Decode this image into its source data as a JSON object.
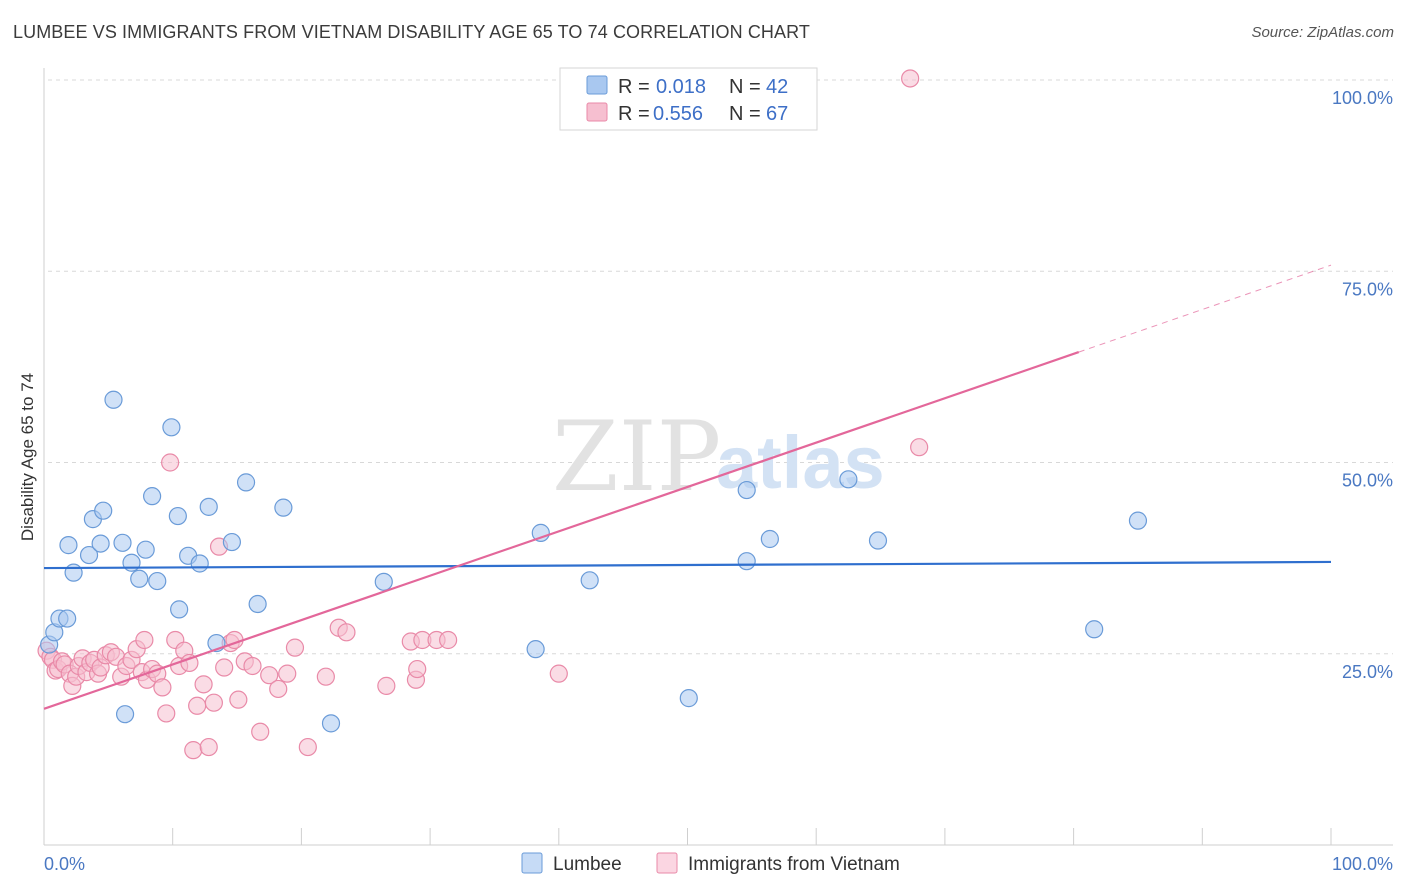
{
  "header": {
    "title": "LUMBEE VS IMMIGRANTS FROM VIETNAM DISABILITY AGE 65 TO 74 CORRELATION CHART",
    "source": "Source: ZipAtlas.com"
  },
  "watermark": {
    "zip": "ZIP",
    "atlas": "atlas"
  },
  "colors": {
    "blue_fill": "#a9c8f0",
    "blue_stroke": "#6a9bd8",
    "blue_line": "#2f6fce",
    "pink_fill": "#f6bfd0",
    "pink_stroke": "#e98aa8",
    "pink_line": "#e3679a",
    "axis_text": "#4a78c2",
    "grid": "#d8d8d8"
  },
  "legend": {
    "r_label": "R =",
    "n_label": "N =",
    "series": [
      {
        "r_value": "0.018",
        "n_value": "42"
      },
      {
        "r_value": "0.556",
        "n_value": "67"
      }
    ]
  },
  "chart_data": {
    "type": "scatter",
    "title": "LUMBEE VS IMMIGRANTS FROM VIETNAM DISABILITY AGE 65 TO 74 CORRELATION CHART",
    "xlabel": "",
    "ylabel": "Disability Age 65 to 74",
    "xlim": [
      0,
      100
    ],
    "ylim": [
      0,
      100
    ],
    "x_tick_labels": [
      "0.0%",
      "100.0%"
    ],
    "y_ticks": [
      {
        "value": 25,
        "label": "25.0%"
      },
      {
        "value": 50,
        "label": "50.0%"
      },
      {
        "value": 75,
        "label": "75.0%"
      },
      {
        "value": 100,
        "label": "100.0%"
      }
    ],
    "series": [
      {
        "name": "Lumbee",
        "color": "#a9c8f0",
        "trend": {
          "x": [
            0,
            100
          ],
          "y": [
            36.2,
            37.0
          ],
          "solid_until": 100
        },
        "points": [
          [
            0.4,
            26.2
          ],
          [
            0.8,
            27.8
          ],
          [
            1.2,
            29.6
          ],
          [
            1.8,
            29.6
          ],
          [
            1.9,
            39.2
          ],
          [
            2.3,
            35.6
          ],
          [
            3.5,
            37.9
          ],
          [
            3.8,
            42.6
          ],
          [
            4.4,
            39.4
          ],
          [
            4.6,
            43.7
          ],
          [
            5.4,
            58.2
          ],
          [
            6.1,
            39.5
          ],
          [
            6.3,
            17.1
          ],
          [
            6.8,
            36.9
          ],
          [
            7.4,
            34.8
          ],
          [
            7.9,
            38.6
          ],
          [
            8.4,
            45.6
          ],
          [
            8.8,
            34.5
          ],
          [
            9.9,
            54.6
          ],
          [
            10.4,
            43.0
          ],
          [
            10.5,
            30.8
          ],
          [
            11.2,
            37.8
          ],
          [
            12.1,
            36.8
          ],
          [
            12.8,
            44.2
          ],
          [
            13.4,
            26.4
          ],
          [
            14.6,
            39.6
          ],
          [
            15.7,
            47.4
          ],
          [
            16.6,
            31.5
          ],
          [
            18.6,
            44.1
          ],
          [
            22.3,
            15.9
          ],
          [
            26.4,
            34.4
          ],
          [
            38.2,
            25.6
          ],
          [
            38.6,
            40.8
          ],
          [
            42.4,
            34.6
          ],
          [
            50.1,
            19.2
          ],
          [
            54.6,
            46.4
          ],
          [
            54.6,
            37.1
          ],
          [
            56.4,
            40.0
          ],
          [
            62.5,
            47.8
          ],
          [
            64.8,
            39.8
          ],
          [
            81.6,
            28.2
          ],
          [
            85.0,
            42.4
          ]
        ]
      },
      {
        "name": "Immigrants from Vietnam",
        "color": "#f6bfd0",
        "trend": {
          "x": [
            0,
            100
          ],
          "y": [
            17.8,
            75.8
          ],
          "solid_until": 80.4
        },
        "points": [
          [
            0.2,
            25.4
          ],
          [
            0.5,
            24.6
          ],
          [
            0.7,
            24.2
          ],
          [
            0.9,
            22.8
          ],
          [
            1.1,
            23.0
          ],
          [
            1.4,
            24.0
          ],
          [
            1.6,
            23.6
          ],
          [
            2.0,
            22.4
          ],
          [
            2.2,
            20.8
          ],
          [
            2.5,
            22.0
          ],
          [
            2.7,
            23.4
          ],
          [
            3.0,
            24.4
          ],
          [
            3.3,
            22.6
          ],
          [
            3.6,
            23.8
          ],
          [
            3.9,
            24.2
          ],
          [
            4.2,
            22.4
          ],
          [
            4.4,
            23.2
          ],
          [
            4.8,
            24.8
          ],
          [
            5.2,
            25.2
          ],
          [
            5.6,
            24.6
          ],
          [
            6.0,
            22.0
          ],
          [
            6.4,
            23.4
          ],
          [
            6.8,
            24.2
          ],
          [
            7.2,
            25.6
          ],
          [
            7.6,
            22.6
          ],
          [
            7.8,
            26.8
          ],
          [
            8.0,
            21.6
          ],
          [
            8.4,
            23.0
          ],
          [
            8.8,
            22.4
          ],
          [
            9.2,
            20.6
          ],
          [
            9.5,
            17.2
          ],
          [
            9.8,
            50.0
          ],
          [
            10.2,
            26.8
          ],
          [
            10.5,
            23.4
          ],
          [
            10.9,
            25.4
          ],
          [
            11.3,
            23.8
          ],
          [
            11.6,
            12.4
          ],
          [
            11.9,
            18.2
          ],
          [
            12.4,
            21.0
          ],
          [
            12.8,
            12.8
          ],
          [
            13.2,
            18.6
          ],
          [
            13.6,
            39.0
          ],
          [
            14.0,
            23.2
          ],
          [
            14.5,
            26.4
          ],
          [
            14.8,
            26.8
          ],
          [
            15.1,
            19.0
          ],
          [
            15.6,
            24.0
          ],
          [
            16.2,
            23.4
          ],
          [
            16.8,
            14.8
          ],
          [
            17.5,
            22.2
          ],
          [
            18.2,
            20.4
          ],
          [
            18.9,
            22.4
          ],
          [
            19.5,
            25.8
          ],
          [
            20.5,
            12.8
          ],
          [
            21.9,
            22.0
          ],
          [
            22.9,
            28.4
          ],
          [
            23.5,
            27.8
          ],
          [
            26.6,
            20.8
          ],
          [
            28.5,
            26.6
          ],
          [
            28.9,
            21.6
          ],
          [
            29.0,
            23.0
          ],
          [
            29.4,
            26.8
          ],
          [
            30.5,
            26.8
          ],
          [
            31.4,
            26.8
          ],
          [
            67.3,
            100.2
          ],
          [
            68.0,
            52.0
          ],
          [
            40.0,
            22.4
          ]
        ]
      }
    ]
  },
  "bottom_legend": {
    "items": [
      {
        "label": "Lumbee"
      },
      {
        "label": "Immigrants from Vietnam"
      }
    ]
  }
}
